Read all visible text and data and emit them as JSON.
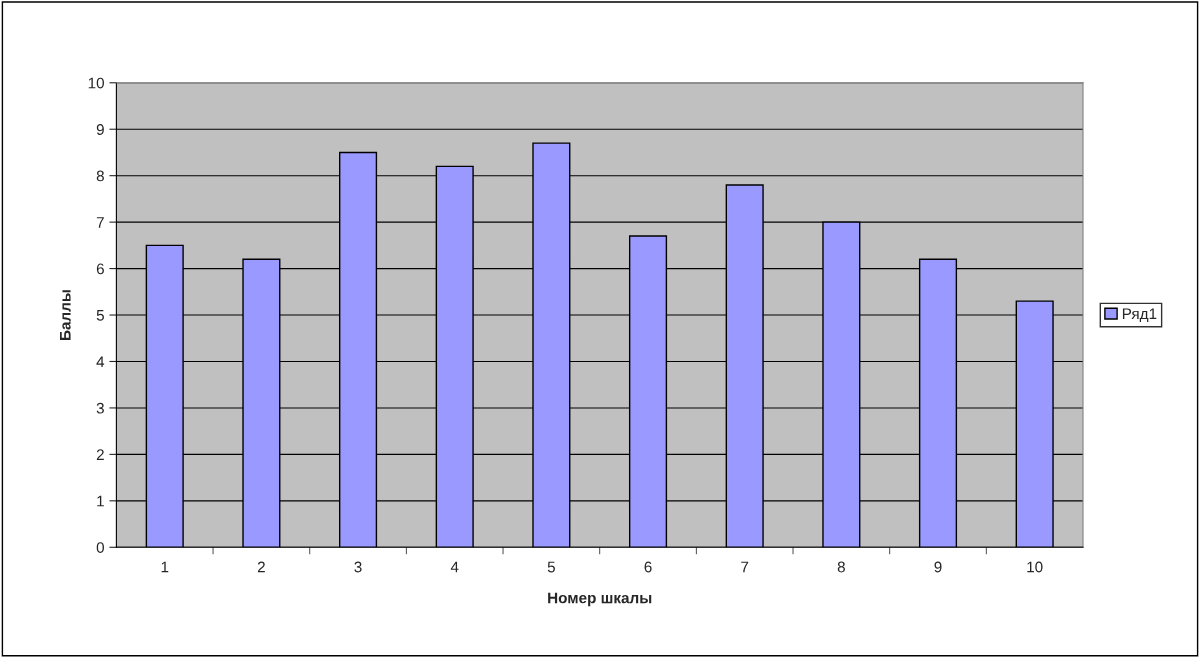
{
  "chart_data": {
    "type": "bar",
    "xlabel": "Номер шкалы",
    "ylabel": "Баллы",
    "categories": [
      "1",
      "2",
      "3",
      "4",
      "5",
      "6",
      "7",
      "8",
      "9",
      "10"
    ],
    "series": [
      {
        "name": "Ряд1",
        "color": "#9999ff",
        "values": [
          6.5,
          6.2,
          8.5,
          8.2,
          8.7,
          6.7,
          7.8,
          7.0,
          6.2,
          5.3
        ]
      }
    ],
    "ylim": [
      0,
      10
    ],
    "yticks": [
      0,
      1,
      2,
      3,
      4,
      5,
      6,
      7,
      8,
      9,
      10
    ],
    "grid": "y",
    "legend": "right"
  }
}
